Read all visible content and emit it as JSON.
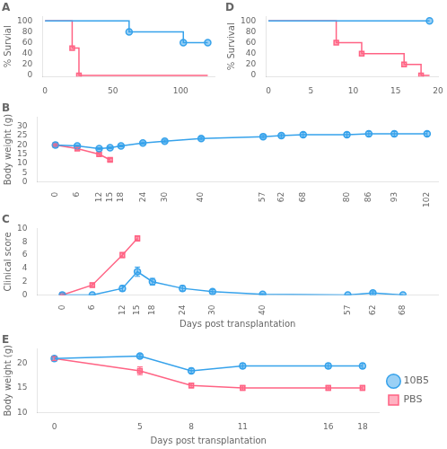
{
  "chart_data": [
    {
      "type": "line",
      "title": "A",
      "ylabel": "% Survial",
      "xlim": [
        -2,
        125
      ],
      "ylim": [
        -2,
        108
      ],
      "xticks": [
        0,
        50,
        100
      ],
      "yticks": [
        0,
        20,
        40,
        60,
        80,
        100
      ],
      "grid": false,
      "series": [
        {
          "name": "10B5",
          "type": "line",
          "marker": "none",
          "x": [
            0,
            20,
            62,
            62,
            102,
            102,
            120
          ],
          "values": [
            100,
            100,
            100,
            80,
            80,
            60,
            60
          ]
        },
        {
          "name": "10B5",
          "type": "scatter",
          "marker": "circle",
          "x": [
            62,
            102,
            120
          ],
          "values": [
            80,
            60,
            60
          ]
        },
        {
          "name": "PBS",
          "type": "line",
          "marker": "none",
          "x": [
            0,
            20,
            20,
            25,
            25,
            120
          ],
          "values": [
            100,
            100,
            50,
            50,
            0,
            0
          ]
        },
        {
          "name": "PBS",
          "type": "scatter",
          "marker": "square",
          "x": [
            20,
            25
          ],
          "values": [
            50,
            0
          ]
        }
      ]
    },
    {
      "type": "line",
      "title": "B",
      "ylabel": "Body weight (g)",
      "xlim": [
        -5,
        105
      ],
      "ylim": [
        0,
        35
      ],
      "xticks": [
        0,
        6,
        12,
        15,
        18,
        24,
        30,
        40,
        57,
        62,
        68,
        80,
        86,
        93,
        102
      ],
      "yticks": [
        0,
        5,
        10,
        15,
        20,
        25,
        30
      ],
      "grid": false,
      "series": [
        {
          "name": "10B5",
          "marker": "circle",
          "x": [
            0,
            6,
            12,
            15,
            18,
            24,
            30,
            40,
            57,
            62,
            68,
            80,
            86,
            93,
            102
          ],
          "values": [
            20.0,
            19.5,
            18.0,
            18.5,
            19.5,
            21.0,
            22.0,
            23.5,
            24.5,
            25.0,
            25.5,
            25.5,
            26.0,
            26.0,
            26.0
          ],
          "errors": [
            0.4,
            0.4,
            0.5,
            0.5,
            0.5,
            0.6,
            0.7,
            0.8,
            0.9,
            1.0,
            1.2,
            1.2,
            1.3,
            1.3,
            1.2
          ]
        },
        {
          "name": "PBS",
          "marker": "square",
          "x": [
            0,
            6,
            12,
            15
          ],
          "values": [
            20.0,
            18.0,
            15.0,
            12.0
          ],
          "errors": [
            0.4,
            0.7,
            0.7,
            0.8
          ]
        }
      ]
    },
    {
      "type": "line",
      "title": "C",
      "ylabel": "Clinical score",
      "xlabel": "Days post transplantation",
      "xlim": [
        -5,
        75
      ],
      "ylim": [
        0,
        10
      ],
      "xticks": [
        0,
        6,
        12,
        15,
        18,
        24,
        30,
        40,
        57,
        62,
        68
      ],
      "yticks": [
        0,
        2,
        4,
        6,
        8,
        10
      ],
      "grid": false,
      "series": [
        {
          "name": "10B5",
          "marker": "circle",
          "x": [
            0,
            6,
            12,
            15,
            18,
            24,
            30,
            40,
            57,
            62,
            68
          ],
          "values": [
            0.0,
            0.0,
            1.0,
            3.5,
            2.0,
            1.0,
            0.5,
            0.1,
            0.0,
            0.3,
            0.0
          ],
          "errors": [
            0.0,
            0.0,
            0.4,
            0.7,
            0.5,
            0.4,
            0.3,
            0.1,
            0.0,
            0.3,
            0.0
          ]
        },
        {
          "name": "PBS",
          "marker": "square",
          "x": [
            0,
            6,
            12,
            15
          ],
          "values": [
            0.0,
            1.5,
            6.0,
            8.5
          ],
          "errors": [
            0.0,
            0.3,
            0.4,
            0.4
          ]
        }
      ]
    },
    {
      "type": "line",
      "title": "D",
      "ylabel": "% Survival",
      "xlim": [
        -0.3,
        20
      ],
      "ylim": [
        -2,
        108
      ],
      "xticks": [
        0,
        5,
        10,
        15,
        20
      ],
      "yticks": [
        0,
        20,
        40,
        60,
        80,
        100
      ],
      "grid": false,
      "series": [
        {
          "name": "10B5",
          "type": "line",
          "marker": "none",
          "x": [
            0,
            19
          ],
          "values": [
            100,
            100
          ]
        },
        {
          "name": "10B5",
          "type": "scatter",
          "marker": "circle",
          "x": [
            19
          ],
          "values": [
            100
          ]
        },
        {
          "name": "PBS",
          "type": "line",
          "marker": "none",
          "x": [
            0,
            8,
            8,
            11,
            11,
            16,
            16,
            18,
            18,
            19
          ],
          "values": [
            100,
            100,
            60,
            60,
            40,
            40,
            20,
            20,
            0,
            0
          ]
        },
        {
          "name": "PBS",
          "type": "scatter",
          "marker": "square",
          "x": [
            8,
            11,
            16,
            18
          ],
          "values": [
            60,
            40,
            20,
            0
          ]
        }
      ]
    },
    {
      "type": "line",
      "title": "E",
      "ylabel": "Body weight (g)",
      "xlabel": "Days post transplantation",
      "xlim": [
        -1,
        19
      ],
      "ylim": [
        10,
        23
      ],
      "xticks": [
        0,
        5,
        8,
        11,
        16,
        18
      ],
      "yticks": [
        10,
        15,
        20
      ],
      "grid": false,
      "legend": "right",
      "series": [
        {
          "name": "10B5",
          "marker": "circle",
          "x": [
            0,
            5,
            8,
            11,
            16,
            18
          ],
          "values": [
            21.0,
            21.5,
            18.5,
            19.5,
            19.5,
            19.5
          ],
          "errors": [
            0.4,
            0.4,
            0.5,
            0.5,
            0.5,
            0.5
          ]
        },
        {
          "name": "PBS",
          "marker": "square",
          "x": [
            0,
            5,
            8,
            11,
            16,
            18
          ],
          "values": [
            21.0,
            18.5,
            15.5,
            15.0,
            15.0,
            15.0
          ],
          "errors": [
            0.4,
            0.8,
            0.5,
            0.5,
            0.5,
            0.5
          ]
        }
      ]
    }
  ]
}
